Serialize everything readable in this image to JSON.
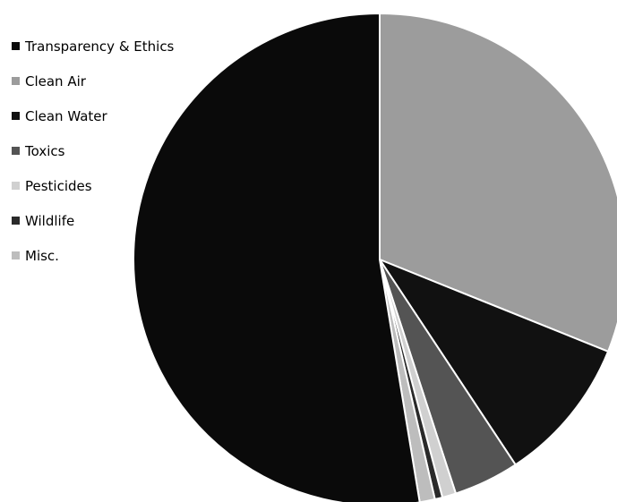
{
  "chart_data": {
    "type": "pie",
    "title": "",
    "start_angle_deg": 0,
    "direction": "clockwise",
    "legend_position": "top-left",
    "categories": [
      "Transparency & Ethics",
      "Clean Air",
      "Clean Water",
      "Toxics",
      "Pesticides",
      "Wildlife",
      "Misc."
    ],
    "values": [
      52.6,
      31.1,
      9.6,
      4.3,
      0.9,
      0.5,
      1.0
    ],
    "unit": "%",
    "slice_order": [
      "Clean Air",
      "Clean Water",
      "Toxics",
      "Pesticides",
      "Wildlife",
      "Misc.",
      "Transparency & Ethics"
    ],
    "colors": [
      "#0a0a0a",
      "#9c9c9c",
      "#111111",
      "#545454",
      "#d0d0d0",
      "#2a2a2a",
      "#bdbdbd"
    ]
  }
}
